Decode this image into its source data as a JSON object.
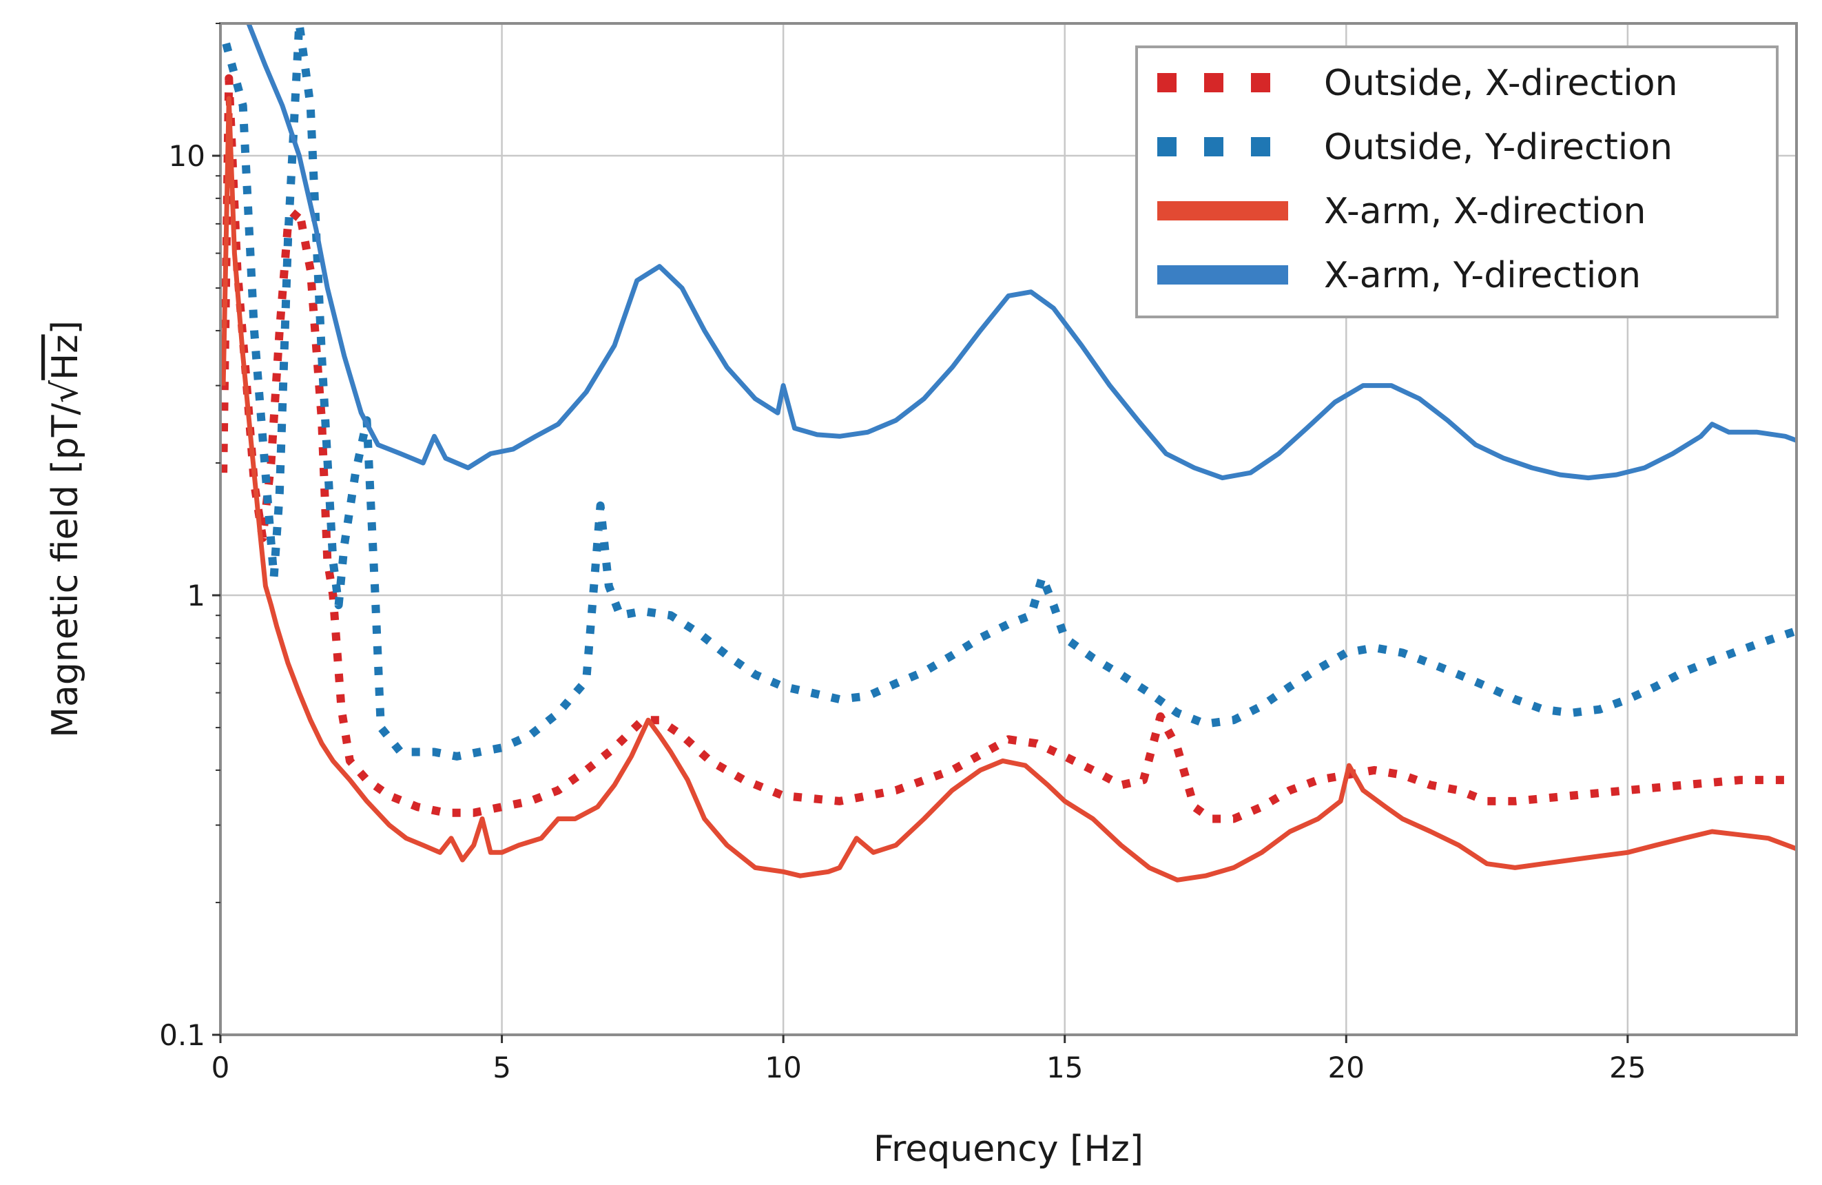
{
  "chart_data": {
    "type": "line",
    "title": "",
    "xlabel": "Frequency [Hz]",
    "ylabel": "Magnetic field [pT/√Hz]",
    "ylabel_parts": {
      "prefix": "Magnetic field [pT/",
      "sqrt_sign": "√",
      "radicand": "Hz",
      "suffix": "]"
    },
    "xlim": [
      0,
      28
    ],
    "ylim": [
      0.1,
      20
    ],
    "yscale": "log",
    "grid": true,
    "legend_position": "top-right",
    "x_ticks": [
      0,
      5,
      10,
      15,
      20,
      25
    ],
    "y_ticks": [
      0.1,
      1,
      10
    ],
    "x_tick_labels": [
      "0",
      "5",
      "10",
      "15",
      "20",
      "25"
    ],
    "y_tick_labels": [
      "0.1",
      "1",
      "10"
    ],
    "series": [
      {
        "name": "Outside, X-direction",
        "color": "#d62728",
        "style": "dotted",
        "points": [
          [
            0.05,
            1.9
          ],
          [
            0.15,
            15
          ],
          [
            0.3,
            5.5
          ],
          [
            0.45,
            3.2
          ],
          [
            0.6,
            1.8
          ],
          [
            0.75,
            1.35
          ],
          [
            0.9,
            2.0
          ],
          [
            1.05,
            4.0
          ],
          [
            1.2,
            7.0
          ],
          [
            1.4,
            7.5
          ],
          [
            1.6,
            5.5
          ],
          [
            1.8,
            2.5
          ],
          [
            1.9,
            1.2
          ],
          [
            2.0,
            1.0
          ],
          [
            2.15,
            0.55
          ],
          [
            2.3,
            0.42
          ],
          [
            2.6,
            0.38
          ],
          [
            3.0,
            0.35
          ],
          [
            3.5,
            0.33
          ],
          [
            4.0,
            0.32
          ],
          [
            4.5,
            0.32
          ],
          [
            5.0,
            0.33
          ],
          [
            5.5,
            0.34
          ],
          [
            6.0,
            0.36
          ],
          [
            6.5,
            0.4
          ],
          [
            7.0,
            0.45
          ],
          [
            7.5,
            0.52
          ],
          [
            7.8,
            0.52
          ],
          [
            8.2,
            0.48
          ],
          [
            8.7,
            0.42
          ],
          [
            9.3,
            0.38
          ],
          [
            10.0,
            0.35
          ],
          [
            11.0,
            0.34
          ],
          [
            12.0,
            0.36
          ],
          [
            13.0,
            0.4
          ],
          [
            14.0,
            0.47
          ],
          [
            14.5,
            0.46
          ],
          [
            15.0,
            0.43
          ],
          [
            15.5,
            0.4
          ],
          [
            16.0,
            0.37
          ],
          [
            16.4,
            0.38
          ],
          [
            16.7,
            0.53
          ],
          [
            17.0,
            0.45
          ],
          [
            17.3,
            0.33
          ],
          [
            17.6,
            0.31
          ],
          [
            18.0,
            0.31
          ],
          [
            18.5,
            0.33
          ],
          [
            19.0,
            0.36
          ],
          [
            19.5,
            0.38
          ],
          [
            20.0,
            0.39
          ],
          [
            20.5,
            0.4
          ],
          [
            21.0,
            0.39
          ],
          [
            21.5,
            0.37
          ],
          [
            22.0,
            0.36
          ],
          [
            22.5,
            0.34
          ],
          [
            23.0,
            0.34
          ],
          [
            24.0,
            0.35
          ],
          [
            25.0,
            0.36
          ],
          [
            26.0,
            0.37
          ],
          [
            27.0,
            0.38
          ],
          [
            28.0,
            0.38
          ]
        ]
      },
      {
        "name": "Outside, Y-direction",
        "color": "#1f77b4",
        "style": "dotted",
        "points": [
          [
            0.1,
            18
          ],
          [
            0.4,
            13
          ],
          [
            0.6,
            4.0
          ],
          [
            0.8,
            1.9
          ],
          [
            0.95,
            1.1
          ],
          [
            1.05,
            1.7
          ],
          [
            1.2,
            6.5
          ],
          [
            1.4,
            20
          ],
          [
            1.6,
            13
          ],
          [
            1.8,
            3.5
          ],
          [
            2.0,
            1.2
          ],
          [
            2.1,
            0.95
          ],
          [
            2.2,
            1.3
          ],
          [
            2.4,
            1.9
          ],
          [
            2.6,
            2.5
          ],
          [
            2.75,
            1.0
          ],
          [
            2.85,
            0.5
          ],
          [
            3.2,
            0.44
          ],
          [
            3.8,
            0.44
          ],
          [
            4.2,
            0.43
          ],
          [
            4.6,
            0.44
          ],
          [
            5.0,
            0.45
          ],
          [
            5.5,
            0.48
          ],
          [
            6.0,
            0.54
          ],
          [
            6.5,
            0.64
          ],
          [
            6.75,
            1.6
          ],
          [
            6.9,
            1.05
          ],
          [
            7.1,
            0.9
          ],
          [
            7.5,
            0.92
          ],
          [
            8.0,
            0.9
          ],
          [
            8.5,
            0.82
          ],
          [
            9.0,
            0.73
          ],
          [
            9.5,
            0.66
          ],
          [
            10.0,
            0.62
          ],
          [
            10.5,
            0.6
          ],
          [
            11.0,
            0.58
          ],
          [
            11.5,
            0.59
          ],
          [
            12.0,
            0.63
          ],
          [
            12.5,
            0.67
          ],
          [
            13.0,
            0.73
          ],
          [
            13.5,
            0.8
          ],
          [
            14.0,
            0.86
          ],
          [
            14.4,
            0.9
          ],
          [
            14.6,
            1.1
          ],
          [
            14.8,
            0.95
          ],
          [
            15.0,
            0.8
          ],
          [
            15.5,
            0.72
          ],
          [
            16.0,
            0.66
          ],
          [
            16.5,
            0.6
          ],
          [
            17.0,
            0.54
          ],
          [
            17.5,
            0.51
          ],
          [
            18.0,
            0.52
          ],
          [
            18.5,
            0.56
          ],
          [
            19.0,
            0.62
          ],
          [
            19.5,
            0.68
          ],
          [
            20.0,
            0.74
          ],
          [
            20.5,
            0.76
          ],
          [
            21.0,
            0.74
          ],
          [
            21.5,
            0.7
          ],
          [
            22.0,
            0.66
          ],
          [
            22.5,
            0.62
          ],
          [
            23.0,
            0.58
          ],
          [
            23.5,
            0.55
          ],
          [
            24.0,
            0.54
          ],
          [
            24.5,
            0.55
          ],
          [
            25.0,
            0.58
          ],
          [
            25.5,
            0.62
          ],
          [
            26.0,
            0.67
          ],
          [
            26.5,
            0.71
          ],
          [
            27.0,
            0.75
          ],
          [
            27.5,
            0.79
          ],
          [
            28.0,
            0.83
          ]
        ]
      },
      {
        "name": "X-arm, X-direction",
        "color": "#e24a33",
        "style": "solid",
        "points": [
          [
            0.05,
            3.0
          ],
          [
            0.15,
            13.5
          ],
          [
            0.25,
            6.0
          ],
          [
            0.4,
            3.5
          ],
          [
            0.55,
            2.2
          ],
          [
            0.7,
            1.4
          ],
          [
            0.8,
            1.05
          ],
          [
            0.9,
            0.95
          ],
          [
            1.0,
            0.85
          ],
          [
            1.2,
            0.7
          ],
          [
            1.4,
            0.6
          ],
          [
            1.6,
            0.52
          ],
          [
            1.8,
            0.46
          ],
          [
            2.0,
            0.42
          ],
          [
            2.3,
            0.38
          ],
          [
            2.6,
            0.34
          ],
          [
            3.0,
            0.3
          ],
          [
            3.3,
            0.28
          ],
          [
            3.6,
            0.27
          ],
          [
            3.9,
            0.26
          ],
          [
            4.1,
            0.28
          ],
          [
            4.3,
            0.25
          ],
          [
            4.5,
            0.27
          ],
          [
            4.65,
            0.31
          ],
          [
            4.8,
            0.26
          ],
          [
            5.0,
            0.26
          ],
          [
            5.3,
            0.27
          ],
          [
            5.7,
            0.28
          ],
          [
            6.0,
            0.31
          ],
          [
            6.3,
            0.31
          ],
          [
            6.7,
            0.33
          ],
          [
            7.0,
            0.37
          ],
          [
            7.3,
            0.43
          ],
          [
            7.6,
            0.52
          ],
          [
            7.8,
            0.48
          ],
          [
            8.0,
            0.44
          ],
          [
            8.3,
            0.38
          ],
          [
            8.6,
            0.31
          ],
          [
            9.0,
            0.27
          ],
          [
            9.5,
            0.24
          ],
          [
            10.0,
            0.235
          ],
          [
            10.3,
            0.23
          ],
          [
            10.8,
            0.235
          ],
          [
            11.0,
            0.24
          ],
          [
            11.3,
            0.28
          ],
          [
            11.6,
            0.26
          ],
          [
            12.0,
            0.27
          ],
          [
            12.5,
            0.31
          ],
          [
            13.0,
            0.36
          ],
          [
            13.5,
            0.4
          ],
          [
            13.9,
            0.42
          ],
          [
            14.3,
            0.41
          ],
          [
            14.7,
            0.37
          ],
          [
            15.0,
            0.34
          ],
          [
            15.5,
            0.31
          ],
          [
            16.0,
            0.27
          ],
          [
            16.5,
            0.24
          ],
          [
            17.0,
            0.225
          ],
          [
            17.5,
            0.23
          ],
          [
            18.0,
            0.24
          ],
          [
            18.5,
            0.26
          ],
          [
            19.0,
            0.29
          ],
          [
            19.5,
            0.31
          ],
          [
            19.9,
            0.34
          ],
          [
            20.05,
            0.41
          ],
          [
            20.3,
            0.36
          ],
          [
            20.7,
            0.33
          ],
          [
            21.0,
            0.31
          ],
          [
            21.5,
            0.29
          ],
          [
            22.0,
            0.27
          ],
          [
            22.5,
            0.245
          ],
          [
            23.0,
            0.24
          ],
          [
            23.5,
            0.245
          ],
          [
            24.0,
            0.25
          ],
          [
            24.5,
            0.255
          ],
          [
            25.0,
            0.26
          ],
          [
            25.5,
            0.27
          ],
          [
            26.0,
            0.28
          ],
          [
            26.5,
            0.29
          ],
          [
            27.0,
            0.285
          ],
          [
            27.5,
            0.28
          ],
          [
            28.0,
            0.265
          ]
        ]
      },
      {
        "name": "X-arm, Y-direction",
        "color": "#3a7fc4",
        "style": "solid",
        "points": [
          [
            0.5,
            20
          ],
          [
            0.8,
            16
          ],
          [
            1.1,
            13
          ],
          [
            1.4,
            10
          ],
          [
            1.7,
            6.8
          ],
          [
            1.9,
            5.0
          ],
          [
            2.2,
            3.5
          ],
          [
            2.5,
            2.6
          ],
          [
            2.8,
            2.2
          ],
          [
            3.2,
            2.1
          ],
          [
            3.6,
            2.0
          ],
          [
            3.8,
            2.3
          ],
          [
            4.0,
            2.05
          ],
          [
            4.4,
            1.95
          ],
          [
            4.8,
            2.1
          ],
          [
            5.2,
            2.15
          ],
          [
            5.6,
            2.3
          ],
          [
            6.0,
            2.45
          ],
          [
            6.5,
            2.9
          ],
          [
            7.0,
            3.7
          ],
          [
            7.4,
            5.2
          ],
          [
            7.8,
            5.6
          ],
          [
            8.2,
            5.0
          ],
          [
            8.6,
            4.0
          ],
          [
            9.0,
            3.3
          ],
          [
            9.5,
            2.8
          ],
          [
            9.9,
            2.6
          ],
          [
            10.0,
            3.0
          ],
          [
            10.2,
            2.4
          ],
          [
            10.6,
            2.32
          ],
          [
            11.0,
            2.3
          ],
          [
            11.5,
            2.35
          ],
          [
            12.0,
            2.5
          ],
          [
            12.5,
            2.8
          ],
          [
            13.0,
            3.3
          ],
          [
            13.5,
            4.0
          ],
          [
            14.0,
            4.8
          ],
          [
            14.4,
            4.9
          ],
          [
            14.8,
            4.5
          ],
          [
            15.3,
            3.7
          ],
          [
            15.8,
            3.0
          ],
          [
            16.3,
            2.5
          ],
          [
            16.8,
            2.1
          ],
          [
            17.3,
            1.95
          ],
          [
            17.8,
            1.85
          ],
          [
            18.3,
            1.9
          ],
          [
            18.8,
            2.1
          ],
          [
            19.3,
            2.4
          ],
          [
            19.8,
            2.75
          ],
          [
            20.3,
            3.0
          ],
          [
            20.8,
            3.0
          ],
          [
            21.3,
            2.8
          ],
          [
            21.8,
            2.5
          ],
          [
            22.3,
            2.2
          ],
          [
            22.8,
            2.05
          ],
          [
            23.3,
            1.95
          ],
          [
            23.8,
            1.88
          ],
          [
            24.3,
            1.85
          ],
          [
            24.8,
            1.88
          ],
          [
            25.3,
            1.95
          ],
          [
            25.8,
            2.1
          ],
          [
            26.3,
            2.3
          ],
          [
            26.5,
            2.45
          ],
          [
            26.8,
            2.35
          ],
          [
            27.3,
            2.35
          ],
          [
            27.8,
            2.3
          ],
          [
            28.0,
            2.25
          ]
        ]
      }
    ]
  }
}
